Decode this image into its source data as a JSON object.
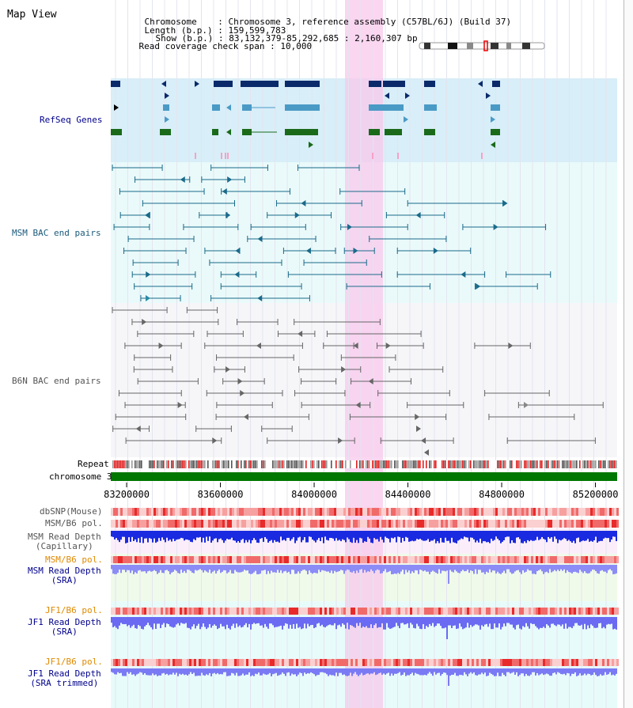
{
  "app_title": "Map View",
  "header": {
    "chromosome_key": "Chromosome",
    "chromosome_val": "Chromosome 3, reference assembly (C57BL/6J) (Build 37)",
    "length_key": "Length (b.p.)",
    "length_val": "159,599,783",
    "show_key": "Show (b.p.)",
    "show_val": "83,132,379-85,292,685 : 2,160,307 bp",
    "coverage_key": "Read coverage check span",
    "coverage_val": "10,000"
  },
  "tracks": {
    "refseq": "RefSeq Genes",
    "msm_bac": "MSM BAC end pairs",
    "b6n_bac": "B6N BAC end pairs",
    "repeat": "Repeat",
    "chromosome": "chromosome 3",
    "dbsnp": "dbSNP(Mouse)",
    "msm_b6_pol_1": "MSM/B6 pol.",
    "msm_depth_cap_1": "MSM Read Depth",
    "msm_depth_cap_2": "(Capillary)",
    "msm_b6_pol_2": "MSM/B6 pol.",
    "msm_depth_sra_1": "MSM Read Depth",
    "msm_depth_sra_2": "(SRA)",
    "jf1_b6_pol_1": "JF1/B6 pol.",
    "jf1_depth_sra_1": "JF1 Read Depth",
    "jf1_depth_sra_2": "(SRA)",
    "jf1_b6_pol_2": "JF1/B6 pol.",
    "jf1_depth_trim_1": "JF1 Read Depth",
    "jf1_depth_trim_2": "(SRA trimmed)"
  },
  "axis": {
    "ticks": [
      "83200000",
      "83600000",
      "84000000",
      "84400000",
      "84800000",
      "85200000"
    ],
    "range_start": 83132379,
    "range_end": 85292685
  },
  "colors": {
    "refseq_label": "#00008b",
    "msm_label": "#1a5a7a",
    "b6n_label": "#555555",
    "orange_label": "#e08a00",
    "blue_label": "#00008b",
    "highlight": "#f8c8ec",
    "chromosome_bar": "#007700"
  }
}
